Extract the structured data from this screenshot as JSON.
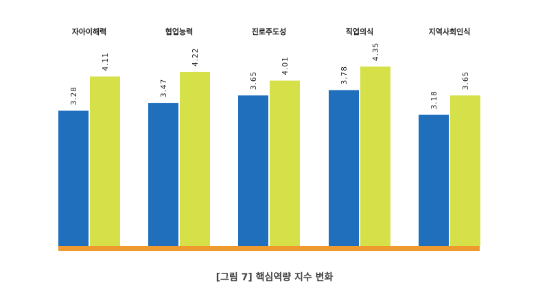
{
  "caption": "[그림 7] 핵심역량 지수 변화",
  "chart_data": {
    "type": "bar",
    "categories": [
      "자아이해력",
      "협업능력",
      "진로주도성",
      "직업의식",
      "지역사회인식"
    ],
    "series": [
      {
        "values": [
          3.28,
          3.47,
          3.65,
          3.78,
          3.18
        ],
        "color": "#1f6fbd"
      },
      {
        "values": [
          4.11,
          4.22,
          4.01,
          4.35,
          3.65
        ],
        "color": "#d6e14a"
      }
    ],
    "value_labels": [
      [
        "3.28",
        "3.47",
        "3.65",
        "3.78",
        "3.18"
      ],
      [
        "4.11",
        "4.22",
        "4.01",
        "4.35",
        "3.65"
      ]
    ],
    "baseline_color": "#ef9a2e",
    "ylim": [
      0,
      4.9
    ],
    "grid": false,
    "legend": "none"
  }
}
